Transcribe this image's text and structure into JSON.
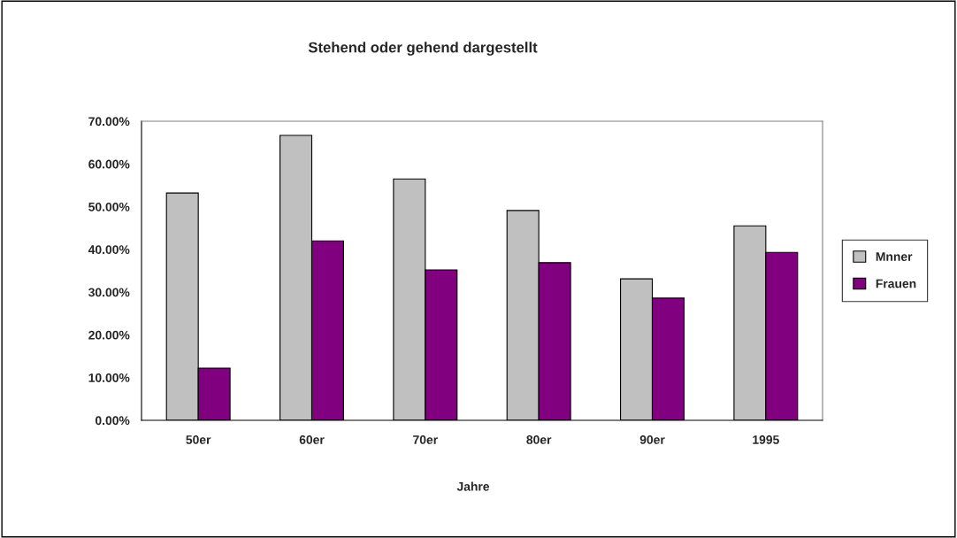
{
  "chart_data": {
    "type": "bar",
    "title": "Stehend oder gehend dargestellt",
    "xlabel": "Jahre",
    "categories": [
      "50er",
      "60er",
      "70er",
      "80er",
      "90er",
      "1995"
    ],
    "series": [
      {
        "name": "Mnner",
        "color": "#c0c0c0",
        "values": [
          53.2,
          66.7,
          56.5,
          49.1,
          33.1,
          45.5
        ]
      },
      {
        "name": "Frauen",
        "color": "#800080",
        "values": [
          12.2,
          42.0,
          35.2,
          36.9,
          28.6,
          39.3
        ]
      }
    ],
    "ylim": [
      0,
      70
    ],
    "yticks": [
      {
        "value": 0,
        "label": "0.00%"
      },
      {
        "value": 10,
        "label": "10.00%"
      },
      {
        "value": 20,
        "label": "20.00%"
      },
      {
        "value": 30,
        "label": "30.00%"
      },
      {
        "value": 40,
        "label": "40.00%"
      },
      {
        "value": 50,
        "label": "50.00%"
      },
      {
        "value": 60,
        "label": "60.00%"
      },
      {
        "value": 70,
        "label": "70.00%"
      }
    ],
    "grid": false,
    "legend": "right"
  }
}
